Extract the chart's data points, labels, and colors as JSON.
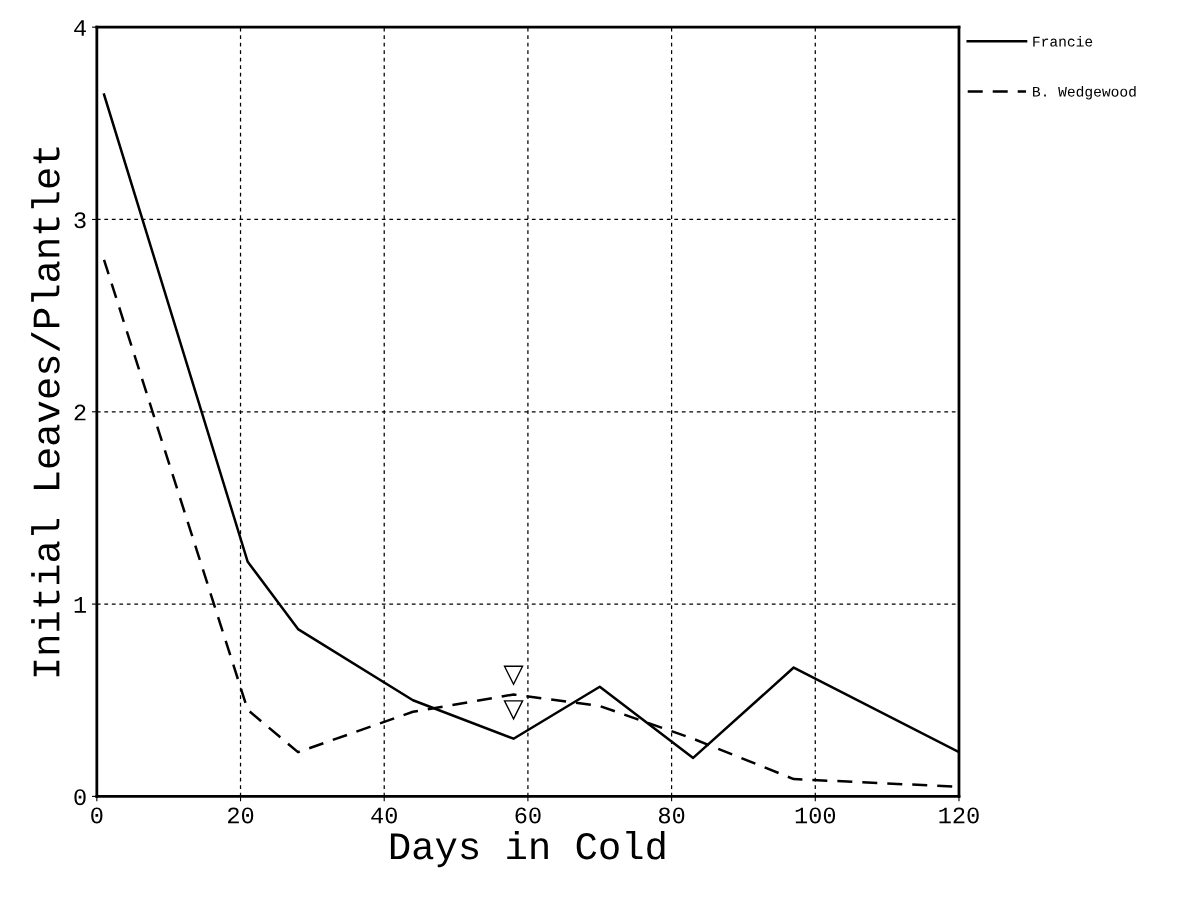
{
  "chart_data": {
    "type": "line",
    "xlabel": "Days in Cold",
    "ylabel": "Initial Leaves/Plantlet",
    "xlim": [
      0,
      120
    ],
    "xticks": [
      0,
      20,
      40,
      60,
      80,
      100,
      120
    ],
    "ylim": [
      0,
      4
    ],
    "yticks": [
      0,
      1,
      2,
      3,
      4
    ],
    "grid": true,
    "legend": "right",
    "series": [
      {
        "name": "Francie",
        "color": "#000000",
        "line_style": "solid",
        "x": [
          1,
          21,
          28,
          44,
          58,
          70,
          83,
          97,
          120
        ],
        "values": [
          3.65,
          1.22,
          0.87,
          0.5,
          0.3,
          0.57,
          0.2,
          0.67,
          0.23
        ]
      },
      {
        "name": "B. Wedgewood",
        "color": "#000000",
        "line_style": "dashed",
        "x": [
          1,
          21,
          28,
          44,
          58,
          70,
          83,
          97,
          120
        ],
        "values": [
          2.79,
          0.45,
          0.23,
          0.44,
          0.53,
          0.47,
          0.3,
          0.09,
          0.05
        ]
      }
    ]
  }
}
